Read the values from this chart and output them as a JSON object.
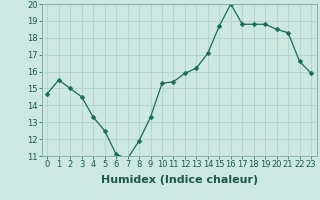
{
  "x": [
    0,
    1,
    2,
    3,
    4,
    5,
    6,
    7,
    8,
    9,
    10,
    11,
    12,
    13,
    14,
    15,
    16,
    17,
    18,
    19,
    20,
    21,
    22,
    23
  ],
  "y": [
    14.7,
    15.5,
    15.0,
    14.5,
    13.3,
    12.5,
    11.1,
    10.85,
    11.9,
    13.3,
    15.3,
    15.4,
    15.9,
    16.2,
    17.1,
    18.7,
    20.0,
    18.8,
    18.8,
    18.8,
    18.5,
    18.3,
    16.6,
    15.9
  ],
  "line_color": "#1a6b5a",
  "marker": "D",
  "marker_size": 2.5,
  "background_color": "#cce8e0",
  "grid_color": "#b0cfc8",
  "xlabel": "Humidex (Indice chaleur)",
  "ylim": [
    11,
    20
  ],
  "xlim": [
    -0.5,
    23.5
  ],
  "yticks": [
    11,
    12,
    13,
    14,
    15,
    16,
    17,
    18,
    19,
    20
  ],
  "xticks": [
    0,
    1,
    2,
    3,
    4,
    5,
    6,
    7,
    8,
    9,
    10,
    11,
    12,
    13,
    14,
    15,
    16,
    17,
    18,
    19,
    20,
    21,
    22,
    23
  ],
  "xtick_labels": [
    "0",
    "1",
    "2",
    "3",
    "4",
    "5",
    "6",
    "7",
    "8",
    "9",
    "10",
    "11",
    "12",
    "13",
    "14",
    "15",
    "16",
    "17",
    "18",
    "19",
    "20",
    "21",
    "22",
    "23"
  ],
  "axis_fontsize": 7,
  "tick_fontsize": 6,
  "xlabel_fontsize": 8
}
